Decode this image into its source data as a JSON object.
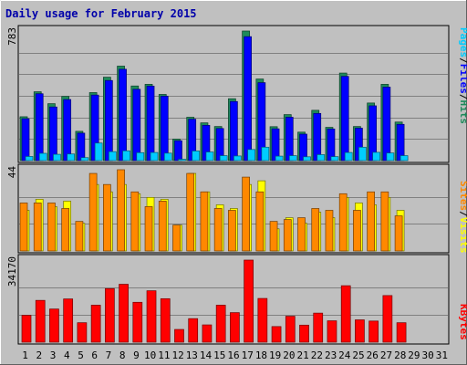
{
  "chart_data": [
    {
      "type": "bar",
      "title": "Daily usage for February 2015",
      "ylabel_parts": [
        "Pages",
        "/",
        "Files",
        "/",
        "Hits"
      ],
      "ymax_label": "783",
      "ylim": [
        0,
        783
      ],
      "categories": [
        "1",
        "2",
        "3",
        "4",
        "5",
        "6",
        "7",
        "8",
        "9",
        "10",
        "11",
        "12",
        "13",
        "14",
        "15",
        "16",
        "17",
        "18",
        "19",
        "20",
        "21",
        "22",
        "23",
        "24",
        "25",
        "26",
        "27",
        "28",
        "29",
        "30",
        "31"
      ],
      "category_colors": [
        "#000000",
        "#000000",
        "#000000",
        "#000000",
        "#000000",
        "#000000",
        "#000000",
        "#000000",
        "#000000",
        "#000000",
        "#000000",
        "#000000",
        "#000000",
        "#000000",
        "#000000",
        "#000000",
        "#000000",
        "#000000",
        "#000000",
        "#000000",
        "#000000",
        "#000000",
        "#000000",
        "#000000",
        "#000000",
        "#000000",
        "#000000",
        "#000000",
        "#000000",
        "#000000",
        "#000000"
      ],
      "series": [
        {
          "name": "Hits",
          "color": "#1e8a5a",
          "values": [
            265,
            416,
            344,
            388,
            177,
            411,
            504,
            571,
            451,
            461,
            400,
            130,
            262,
            228,
            206,
            374,
            783,
            493,
            205,
            278,
            172,
            304,
            201,
            529,
            206,
            348,
            461,
            233,
            0,
            0,
            0
          ]
        },
        {
          "name": "Files",
          "color": "#0000ff",
          "values": [
            253,
            404,
            324,
            369,
            166,
            396,
            484,
            552,
            431,
            450,
            389,
            120,
            250,
            213,
            194,
            357,
            749,
            471,
            192,
            262,
            160,
            285,
            191,
            509,
            196,
            331,
            444,
            219,
            0,
            0,
            0
          ]
        },
        {
          "name": "Pages",
          "color": "#00ccff",
          "values": [
            25,
            44,
            38,
            40,
            18,
            106,
            54,
            59,
            48,
            49,
            45,
            8,
            58,
            52,
            30,
            28,
            67,
            81,
            27,
            30,
            23,
            36,
            24,
            49,
            81,
            50,
            46,
            30,
            0,
            0,
            0
          ]
        }
      ]
    },
    {
      "type": "bar",
      "ylabel_parts": [
        "Sites",
        "/",
        "Visits"
      ],
      "ymax_label": "44",
      "ylim": [
        0,
        44
      ],
      "series": [
        {
          "name": "Visits",
          "color": "#ffff00",
          "values": [
            22,
            28,
            24,
            27,
            15,
            36,
            32,
            36,
            31,
            29,
            28,
            14,
            42,
            32,
            25,
            23,
            36,
            38,
            12,
            18,
            15,
            21,
            18,
            29,
            26,
            25,
            29,
            22,
            0,
            0,
            0
          ]
        },
        {
          "name": "Sites",
          "color": "#ff8800",
          "values": [
            26,
            26,
            26,
            23,
            16,
            42,
            36,
            44,
            32,
            24,
            27,
            14,
            42,
            32,
            23,
            22,
            40,
            32,
            16,
            17,
            18,
            23,
            22,
            31,
            22,
            32,
            32,
            19,
            0,
            0,
            0
          ]
        }
      ]
    },
    {
      "type": "bar",
      "ylabel_parts": [
        "KBytes"
      ],
      "ymax_label": "34170",
      "ylim": [
        0,
        34170
      ],
      "series": [
        {
          "name": "KBytes",
          "color": "#ff0000",
          "values": [
            11200,
            17400,
            13800,
            18000,
            8100,
            15400,
            22300,
            24100,
            16600,
            21400,
            18100,
            5300,
            9800,
            7200,
            15400,
            12300,
            34170,
            18200,
            6500,
            10800,
            7100,
            12100,
            8900,
            23500,
            9300,
            8800,
            19400,
            8100,
            0,
            0,
            0
          ]
        }
      ]
    }
  ]
}
